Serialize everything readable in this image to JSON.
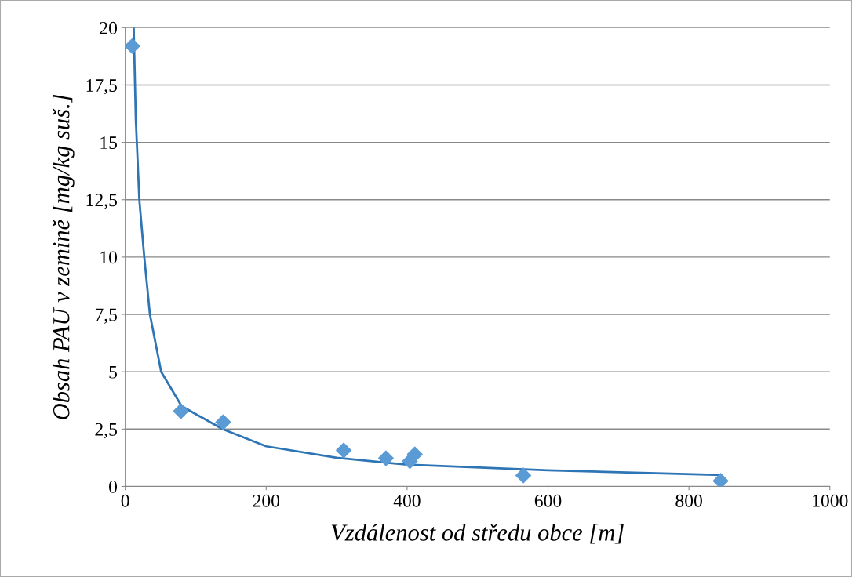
{
  "chart_data": {
    "type": "scatter",
    "xlabel": "Vzdálenost od středu obce [m]",
    "ylabel": "Obsah PAU v zemině [mg/kg suš.]",
    "x": [
      10,
      79,
      139,
      310,
      370,
      404,
      411,
      565,
      845
    ],
    "series": [
      {
        "color": "#5b9bd5",
        "marker": "diamond",
        "values": [
          19.2,
          3.28,
          2.8,
          1.57,
          1.23,
          1.1,
          1.4,
          0.48,
          0.24
        ]
      },
      {
        "type": "line",
        "color": "#2e75b6",
        "line_style": "solid",
        "x": [
          12,
          15,
          20,
          27,
          35,
          51,
          80,
          138,
          200,
          300,
          400,
          600,
          845
        ],
        "values": [
          20,
          16,
          12.5,
          10,
          7.5,
          5,
          3.5,
          2.5,
          1.75,
          1.25,
          0.95,
          0.7,
          0.5
        ]
      }
    ],
    "xlim": [
      0,
      1000
    ],
    "xticks": [
      0,
      200,
      400,
      600,
      800,
      1000
    ],
    "ylim": [
      0,
      20
    ],
    "yticks": [
      0,
      {
        "value": 2.5,
        "label": "2,5"
      },
      5,
      {
        "value": 7.5,
        "label": "7,5"
      },
      10,
      {
        "value": 12.5,
        "label": "12,5"
      },
      15,
      {
        "value": 17.5,
        "label": "17,5"
      },
      20
    ],
    "grid": "y",
    "legend": false
  }
}
